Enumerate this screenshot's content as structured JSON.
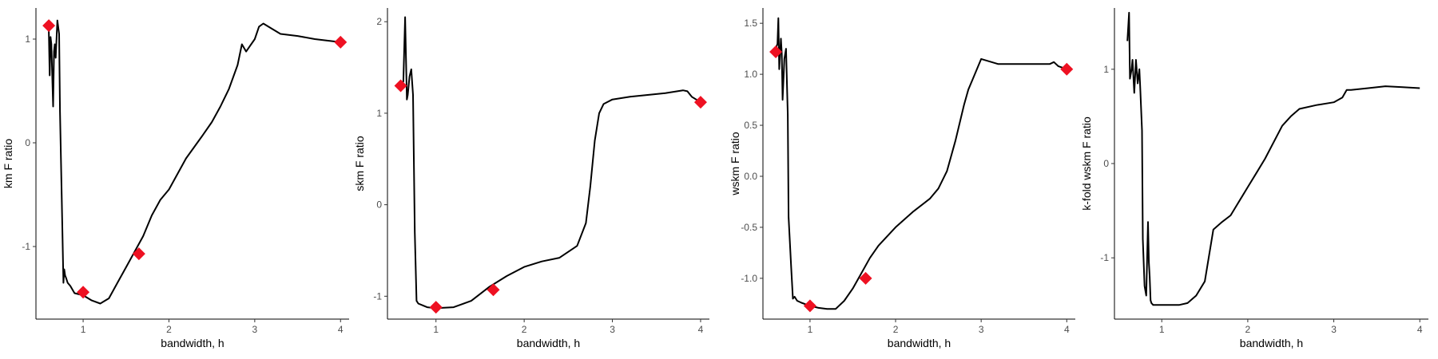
{
  "chart_data": [
    {
      "type": "line",
      "xlabel": "bandwidth, h",
      "ylabel": "km F ratio",
      "xlim": [
        0.45,
        4.1
      ],
      "ylim": [
        -1.7,
        1.3
      ],
      "xticks": [
        1,
        2,
        3,
        4
      ],
      "yticks": [
        -1,
        0,
        1
      ],
      "grid": false,
      "series": [
        {
          "x": [
            0.58,
            0.6,
            0.61,
            0.62,
            0.63,
            0.65,
            0.66,
            0.67,
            0.68,
            0.7,
            0.72,
            0.73,
            0.75,
            0.77,
            0.78,
            0.79,
            0.8,
            0.82,
            0.85,
            0.9,
            1.0,
            1.1,
            1.2,
            1.3,
            1.4,
            1.5,
            1.6,
            1.7,
            1.8,
            1.9,
            2.0,
            2.2,
            2.4,
            2.5,
            2.6,
            2.7,
            2.8,
            2.85,
            2.9,
            3.0,
            3.05,
            3.1,
            3.2,
            3.3,
            3.5,
            3.7,
            4.0
          ],
          "y": [
            1.15,
            1.08,
            0.65,
            1.02,
            0.95,
            0.35,
            0.88,
            0.95,
            0.82,
            1.18,
            1.05,
            0.3,
            -0.5,
            -1.35,
            -1.22,
            -1.28,
            -1.3,
            -1.35,
            -1.38,
            -1.45,
            -1.47,
            -1.52,
            -1.55,
            -1.5,
            -1.35,
            -1.2,
            -1.05,
            -0.9,
            -0.7,
            -0.55,
            -0.45,
            -0.15,
            0.08,
            0.2,
            0.35,
            0.52,
            0.75,
            0.95,
            0.88,
            1.0,
            1.12,
            1.15,
            1.1,
            1.05,
            1.03,
            1.0,
            0.97
          ]
        }
      ],
      "markers": [
        {
          "x": 0.6,
          "y": 1.13
        },
        {
          "x": 1.0,
          "y": -1.44
        },
        {
          "x": 1.65,
          "y": -1.07
        },
        {
          "x": 4.0,
          "y": 0.97
        }
      ]
    },
    {
      "type": "line",
      "xlabel": "bandwidth, h",
      "ylabel": "skm F ratio",
      "xlim": [
        0.45,
        4.1
      ],
      "ylim": [
        -1.25,
        2.15
      ],
      "xticks": [
        1,
        2,
        3,
        4
      ],
      "yticks": [
        -1,
        0,
        1,
        2
      ],
      "grid": false,
      "series": [
        {
          "x": [
            0.6,
            0.63,
            0.65,
            0.66,
            0.67,
            0.68,
            0.7,
            0.72,
            0.74,
            0.76,
            0.78,
            0.8,
            0.85,
            0.9,
            1.0,
            1.2,
            1.4,
            1.6,
            1.8,
            2.0,
            2.2,
            2.4,
            2.6,
            2.7,
            2.75,
            2.8,
            2.85,
            2.9,
            3.0,
            3.2,
            3.4,
            3.6,
            3.8,
            3.85,
            3.9,
            4.0
          ],
          "y": [
            1.25,
            1.35,
            2.05,
            1.6,
            1.15,
            1.2,
            1.4,
            1.48,
            1.2,
            -0.3,
            -1.05,
            -1.08,
            -1.1,
            -1.12,
            -1.13,
            -1.12,
            -1.05,
            -0.9,
            -0.78,
            -0.68,
            -0.62,
            -0.58,
            -0.45,
            -0.2,
            0.2,
            0.7,
            1.0,
            1.1,
            1.15,
            1.18,
            1.2,
            1.22,
            1.25,
            1.24,
            1.18,
            1.12
          ]
        }
      ],
      "markers": [
        {
          "x": 0.6,
          "y": 1.3
        },
        {
          "x": 1.0,
          "y": -1.12
        },
        {
          "x": 1.65,
          "y": -0.93
        },
        {
          "x": 4.0,
          "y": 1.12
        }
      ]
    },
    {
      "type": "line",
      "xlabel": "bandwidth, h",
      "ylabel": "wskm F ratio",
      "xlim": [
        0.45,
        4.1
      ],
      "ylim": [
        -1.4,
        1.65
      ],
      "xticks": [
        1,
        2,
        3,
        4
      ],
      "yticks": [
        -1.0,
        -0.5,
        0.0,
        0.5,
        1.0,
        1.5
      ],
      "ytick_labels": [
        "-1.0",
        "-0.5",
        "0.0",
        "0.5",
        "1.0",
        "1.5"
      ],
      "grid": false,
      "series": [
        {
          "x": [
            0.6,
            0.62,
            0.63,
            0.64,
            0.66,
            0.67,
            0.68,
            0.7,
            0.72,
            0.74,
            0.75,
            0.78,
            0.8,
            0.82,
            0.85,
            0.9,
            1.0,
            1.1,
            1.2,
            1.3,
            1.4,
            1.5,
            1.6,
            1.7,
            1.8,
            2.0,
            2.2,
            2.4,
            2.5,
            2.6,
            2.7,
            2.8,
            2.85,
            2.9,
            3.0,
            3.2,
            3.4,
            3.6,
            3.8,
            3.85,
            3.9,
            4.0
          ],
          "y": [
            1.25,
            1.3,
            1.55,
            1.05,
            1.35,
            1.2,
            0.75,
            1.15,
            1.25,
            0.6,
            -0.4,
            -0.9,
            -1.2,
            -1.18,
            -1.22,
            -1.24,
            -1.27,
            -1.29,
            -1.3,
            -1.3,
            -1.22,
            -1.1,
            -0.95,
            -0.8,
            -0.68,
            -0.5,
            -0.35,
            -0.22,
            -0.12,
            0.05,
            0.35,
            0.7,
            0.85,
            0.95,
            1.15,
            1.1,
            1.1,
            1.1,
            1.1,
            1.12,
            1.08,
            1.05
          ]
        }
      ],
      "markers": [
        {
          "x": 0.6,
          "y": 1.22
        },
        {
          "x": 1.0,
          "y": -1.27
        },
        {
          "x": 1.65,
          "y": -1.0
        },
        {
          "x": 4.0,
          "y": 1.05
        }
      ]
    },
    {
      "type": "line",
      "xlabel": "bandwidth, h",
      "ylabel": "k-fold wskm F ratio",
      "xlim": [
        0.45,
        4.1
      ],
      "ylim": [
        -1.65,
        1.65
      ],
      "xticks": [
        1,
        2,
        3,
        4
      ],
      "yticks": [
        -1,
        0,
        1
      ],
      "grid": false,
      "series": [
        {
          "x": [
            0.6,
            0.62,
            0.63,
            0.65,
            0.66,
            0.68,
            0.7,
            0.72,
            0.74,
            0.75,
            0.77,
            0.78,
            0.8,
            0.82,
            0.84,
            0.85,
            0.86,
            0.87,
            0.88,
            0.9,
            1.0,
            1.1,
            1.2,
            1.3,
            1.4,
            1.5,
            1.6,
            1.7,
            1.8,
            1.9,
            2.0,
            2.1,
            2.2,
            2.4,
            2.5,
            2.6,
            2.8,
            3.0,
            3.1,
            3.15,
            3.2,
            3.4,
            3.6,
            3.8,
            4.0
          ],
          "y": [
            1.3,
            1.6,
            0.9,
            1.0,
            1.1,
            0.75,
            1.1,
            0.85,
            1.0,
            0.8,
            0.35,
            -0.8,
            -1.3,
            -1.4,
            -0.62,
            -1.05,
            -1.2,
            -1.45,
            -1.48,
            -1.5,
            -1.5,
            -1.5,
            -1.5,
            -1.48,
            -1.4,
            -1.25,
            -0.7,
            -0.62,
            -0.55,
            -0.4,
            -0.25,
            -0.1,
            0.05,
            0.4,
            0.5,
            0.58,
            0.62,
            0.65,
            0.7,
            0.78,
            0.78,
            0.8,
            0.82,
            0.81,
            0.8
          ]
        }
      ],
      "markers": []
    }
  ]
}
